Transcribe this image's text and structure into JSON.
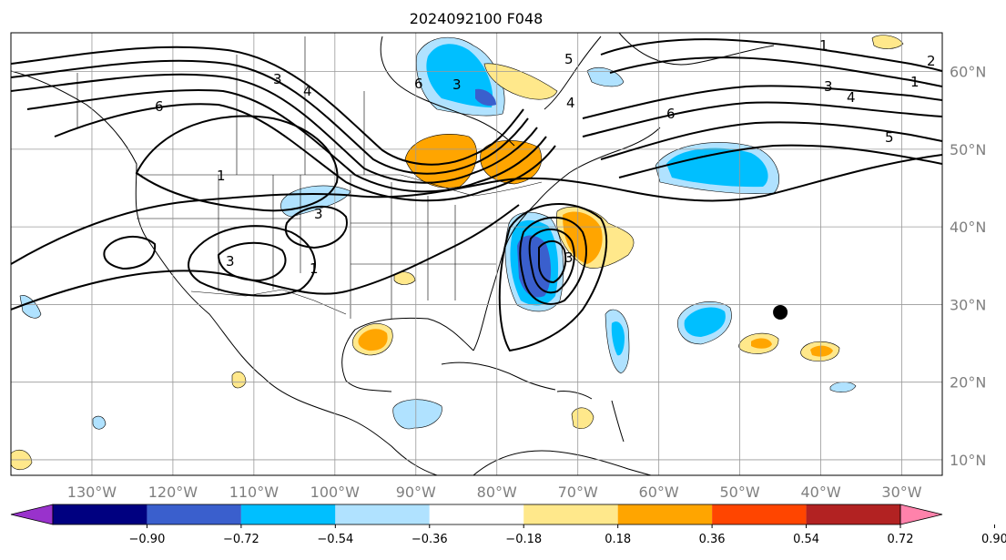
{
  "title": "2024092100 F048",
  "map": {
    "projection": "PlateCarree",
    "lon_range": [
      -140,
      -25
    ],
    "lat_range": [
      8,
      65
    ],
    "lon_ticks": [
      {
        "value": -130,
        "label": "130°W"
      },
      {
        "value": -120,
        "label": "120°W"
      },
      {
        "value": -110,
        "label": "110°W"
      },
      {
        "value": -100,
        "label": "100°W"
      },
      {
        "value": -90,
        "label": "90°W"
      },
      {
        "value": -80,
        "label": "80°W"
      },
      {
        "value": -70,
        "label": "70°W"
      },
      {
        "value": -60,
        "label": "60°W"
      },
      {
        "value": -50,
        "label": "50°W"
      },
      {
        "value": -40,
        "label": "40°W"
      },
      {
        "value": -30,
        "label": "30°W"
      }
    ],
    "lat_ticks": [
      {
        "value": 10,
        "label": "10°N"
      },
      {
        "value": 20,
        "label": "20°N"
      },
      {
        "value": 30,
        "label": "30°N"
      },
      {
        "value": 40,
        "label": "40°N"
      },
      {
        "value": 50,
        "label": "50°N"
      },
      {
        "value": 60,
        "label": "60°N"
      }
    ],
    "gridlines": true,
    "marker": {
      "lon": -45,
      "lat": 29,
      "color": "#000000"
    }
  },
  "colorbar": {
    "extend": "both",
    "colors": [
      "#9932cc",
      "#000080",
      "#3a5fcd",
      "#00bfff",
      "#b0e2ff",
      "#ffffff",
      "#ffe88b",
      "#ffa500",
      "#ff4500",
      "#b22222",
      "#ff82ab"
    ],
    "tick_labels": [
      "−0.90",
      "−0.72",
      "−0.54",
      "−0.36",
      "−0.18",
      "0.18",
      "0.36",
      "0.54",
      "0.72",
      "0.90"
    ]
  },
  "contour_labels": [
    "1",
    "2",
    "3",
    "4",
    "5",
    "6"
  ]
}
